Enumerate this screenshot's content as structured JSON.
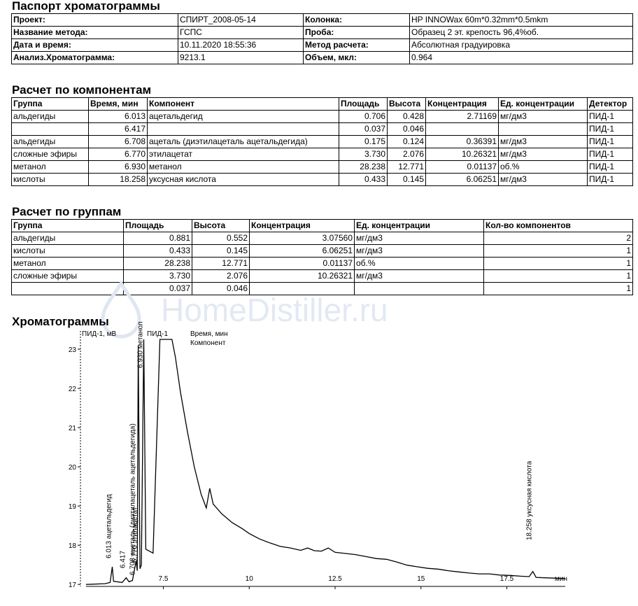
{
  "title": "Паспорт хроматограммы",
  "passport": {
    "rows": [
      [
        "Проект:",
        "СПИРТ_2008-05-14",
        "Колонка:",
        "HP INNOWax 60m*0.32mm*0.5mkm"
      ],
      [
        "Название метода:",
        "ГСПС",
        "Проба:",
        "Образец 2 эт. крепость 96,4%об."
      ],
      [
        "Дата и время:",
        "10.11.2020 18:55:36",
        "Метод расчета:",
        "Абсолютная градуировка"
      ],
      [
        "Анализ.Хроматограмма:",
        "9213.1",
        "Объем, мкл:",
        "0.964"
      ]
    ]
  },
  "components": {
    "heading": "Расчет по компонентам",
    "headers": [
      "Группа",
      "Время, мин",
      "Компонент",
      "Площадь",
      "Высота",
      "Концентрация",
      "Ед. концентрации",
      "Детектор"
    ],
    "rows": [
      [
        "альдегиды",
        "6.013",
        "ацетальдегид",
        "0.706",
        "0.428",
        "2.71169",
        "мг/дм3",
        "ПИД-1"
      ],
      [
        "",
        "6.417",
        "",
        "0.037",
        "0.046",
        "",
        "",
        "ПИД-1"
      ],
      [
        "альдегиды",
        "6.708",
        "ацеталь (диэтилацеталь ацетальдегида)",
        "0.175",
        "0.124",
        "0.36391",
        "мг/дм3",
        "ПИД-1"
      ],
      [
        "сложные эфиры",
        "6.770",
        "этилацетат",
        "3.730",
        "2.076",
        "10.26321",
        "мг/дм3",
        "ПИД-1"
      ],
      [
        "метанол",
        "6.930",
        "метанол",
        "28.238",
        "12.771",
        "0.01137",
        "об.%",
        "ПИД-1"
      ],
      [
        "кислоты",
        "18.258",
        "уксусная кислота",
        "0.433",
        "0.145",
        "6.06251",
        "мг/дм3",
        "ПИД-1"
      ]
    ]
  },
  "groups": {
    "heading": "Расчет по группам",
    "headers": [
      "Группа",
      "Площадь",
      "Высота",
      "Концентрация",
      "Ед. концентрации",
      "Кол-во компонентов"
    ],
    "rows": [
      [
        "альдегиды",
        "0.881",
        "0.552",
        "3.07560",
        "мг/дм3",
        "2"
      ],
      [
        "кислоты",
        "0.433",
        "0.145",
        "6.06251",
        "мг/дм3",
        "1"
      ],
      [
        "метанол",
        "28.238",
        "12.771",
        "0.01137",
        "об.%",
        "1"
      ],
      [
        "сложные эфиры",
        "3.730",
        "2.076",
        "10.26321",
        "мг/дм3",
        "1"
      ],
      [
        "",
        "0.037",
        "0.046",
        "",
        "",
        "1"
      ]
    ]
  },
  "watermark": "HomeDistiller.ru",
  "chart_heading": "Хроматограммы",
  "chart_data": {
    "type": "line",
    "detector_label": "ПИД-1, мВ",
    "series_label": "ПИД-1",
    "legend": [
      "Время, мин",
      "Компонент"
    ],
    "xlabel": "мин",
    "xlim": [
      5.25,
      19.2
    ],
    "ylim": [
      16.95,
      23.25
    ],
    "x_ticks": [
      "7.5",
      "10",
      "12.5",
      "15",
      "17.5"
    ],
    "y_ticks": [
      "23",
      "22",
      "21",
      "20",
      "19",
      "18",
      "17"
    ],
    "peak_labels": [
      "6.013 ацетальдегид",
      "6.417",
      "6.708 ацеталь (диэтилацеталь ацетальдегида)",
      "6.770 этилацетат",
      "6.930 метанол",
      "18.258 уксусная кислота"
    ],
    "series": [
      {
        "name": "ПИД-1",
        "points": [
          [
            5.25,
            17.0
          ],
          [
            5.8,
            17.02
          ],
          [
            5.95,
            17.05
          ],
          [
            6.013,
            17.45
          ],
          [
            6.05,
            17.08
          ],
          [
            6.3,
            17.05
          ],
          [
            6.417,
            17.17
          ],
          [
            6.5,
            17.07
          ],
          [
            6.6,
            17.1
          ],
          [
            6.708,
            17.6
          ],
          [
            6.74,
            17.35
          ],
          [
            6.77,
            23.1
          ],
          [
            6.82,
            17.4
          ],
          [
            6.86,
            17.5
          ],
          [
            6.93,
            23.25
          ],
          [
            6.99,
            17.9
          ],
          [
            7.2,
            17.8
          ],
          [
            7.4,
            23.25
          ],
          [
            7.55,
            23.25
          ],
          [
            7.75,
            23.25
          ],
          [
            7.85,
            22.8
          ],
          [
            8.0,
            21.9
          ],
          [
            8.2,
            20.9
          ],
          [
            8.4,
            20.0
          ],
          [
            8.6,
            19.3
          ],
          [
            8.75,
            18.95
          ],
          [
            8.85,
            19.45
          ],
          [
            8.95,
            19.05
          ],
          [
            9.2,
            18.8
          ],
          [
            9.5,
            18.58
          ],
          [
            9.8,
            18.42
          ],
          [
            10.0,
            18.3
          ],
          [
            10.3,
            18.16
          ],
          [
            10.6,
            18.06
          ],
          [
            10.9,
            17.97
          ],
          [
            11.2,
            17.93
          ],
          [
            11.5,
            17.87
          ],
          [
            11.7,
            17.93
          ],
          [
            11.9,
            17.86
          ],
          [
            12.1,
            17.85
          ],
          [
            12.3,
            17.93
          ],
          [
            12.5,
            17.82
          ],
          [
            12.8,
            17.79
          ],
          [
            13.1,
            17.76
          ],
          [
            13.4,
            17.71
          ],
          [
            13.7,
            17.66
          ],
          [
            14.0,
            17.64
          ],
          [
            14.3,
            17.57
          ],
          [
            14.6,
            17.49
          ],
          [
            14.9,
            17.45
          ],
          [
            15.2,
            17.41
          ],
          [
            15.5,
            17.39
          ],
          [
            15.8,
            17.35
          ],
          [
            16.1,
            17.32
          ],
          [
            16.4,
            17.29
          ],
          [
            16.7,
            17.27
          ],
          [
            17.0,
            17.27
          ],
          [
            17.3,
            17.24
          ],
          [
            17.6,
            17.23
          ],
          [
            17.9,
            17.21
          ],
          [
            18.15,
            17.2
          ],
          [
            18.258,
            17.33
          ],
          [
            18.35,
            17.18
          ],
          [
            18.6,
            17.17
          ],
          [
            18.9,
            17.16
          ],
          [
            19.2,
            17.15
          ]
        ]
      }
    ]
  }
}
